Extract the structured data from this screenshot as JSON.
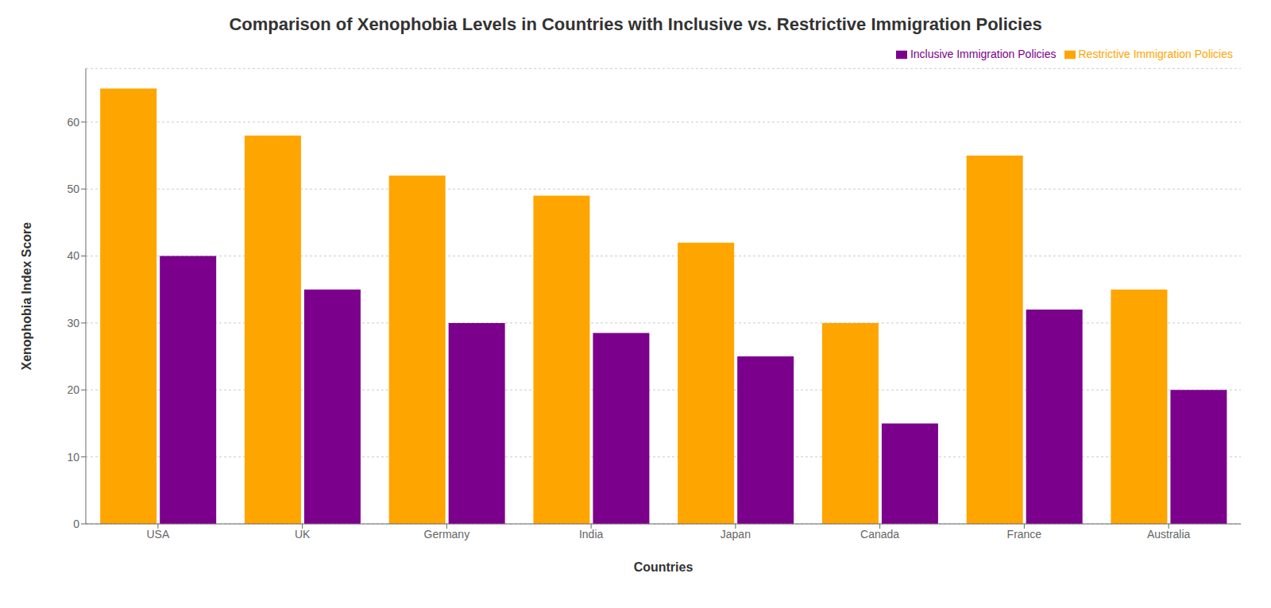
{
  "chart_data": {
    "type": "bar",
    "title": "Comparison of Xenophobia Levels in Countries with Inclusive vs. Restrictive Immigration Policies",
    "xlabel": "Countries",
    "ylabel": "Xenophobia Index Score",
    "categories": [
      "USA",
      "UK",
      "Germany",
      "India",
      "Japan",
      "Canada",
      "France",
      "Australia"
    ],
    "series": [
      {
        "name": "Restrictive Immigration Policies",
        "color": "#FFA500",
        "values": [
          65,
          58,
          52,
          49,
          42,
          30,
          55,
          35
        ]
      },
      {
        "name": "Inclusive Immigration Policies",
        "color": "#7B008B",
        "values": [
          40,
          35,
          30,
          28.5,
          25,
          15,
          32,
          20
        ]
      }
    ],
    "ylim": [
      0,
      68
    ],
    "yticks": [
      0,
      10,
      20,
      30,
      40,
      50,
      60
    ],
    "grid": true,
    "legend": "upper right"
  }
}
